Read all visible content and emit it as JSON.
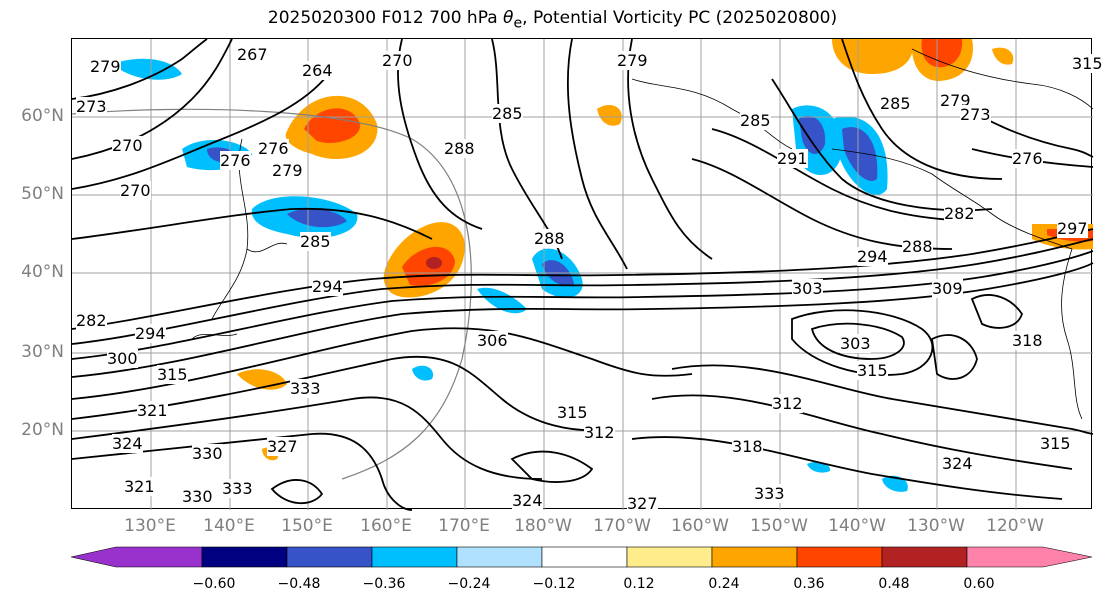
{
  "title": {
    "prefix": "2025020300 F012 700 hPa ",
    "theta": "θ",
    "theta_sub": "e",
    "suffix": ", Potential Vorticity PC (2025020800)"
  },
  "lat_labels": [
    "60°N",
    "50°N",
    "40°N",
    "30°N",
    "20°N"
  ],
  "lon_labels": [
    "130°E",
    "140°E",
    "150°E",
    "160°E",
    "170°E",
    "180°W",
    "170°W",
    "160°W",
    "150°W",
    "140°W",
    "130°W",
    "120°W"
  ],
  "colorbar": {
    "colors": [
      "#9932cc",
      "#000080",
      "#3653c8",
      "#00bfff",
      "#b0e2ff",
      "#ffffff",
      "#ffec8b",
      "#ffa500",
      "#ff4500",
      "#b22222",
      "#ff82ab"
    ],
    "tick_labels": [
      "−0.60",
      "−0.48",
      "−0.36",
      "−0.24",
      "−0.12",
      "0.12",
      "0.24",
      "0.36",
      "0.48",
      "0.60"
    ]
  },
  "contour_labels": [
    "279",
    "267",
    "264",
    "270",
    "273",
    "270",
    "276",
    "279",
    "270",
    "285",
    "288",
    "285",
    "276",
    "279",
    "294",
    "285",
    "288",
    "291",
    "282",
    "294",
    "288",
    "279",
    "273",
    "276",
    "285",
    "297",
    "282",
    "294",
    "300",
    "303",
    "309",
    "306",
    "315",
    "321",
    "324",
    "330",
    "333",
    "327",
    "315",
    "312",
    "312",
    "318",
    "303",
    "318",
    "315",
    "321",
    "333",
    "330",
    "324",
    "327",
    "324",
    "333",
    "315",
    "315"
  ]
}
